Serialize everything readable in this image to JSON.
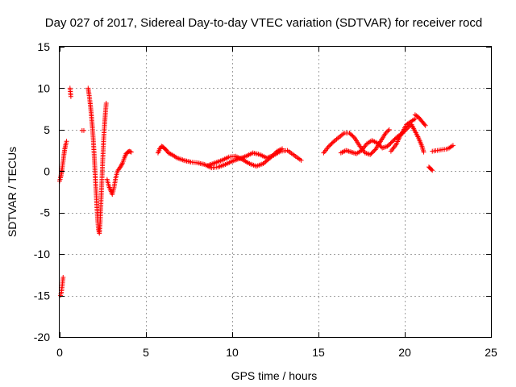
{
  "chart_data": {
    "type": "scatter",
    "title": "Day 027 of 2017, Sidereal Day-to-day VTEC variation (SDTVAR) for receiver rocd",
    "xlabel": "GPS time / hours",
    "ylabel": "SDTVAR / TECUs",
    "xlim": [
      0,
      25
    ],
    "ylim": [
      -20,
      15
    ],
    "grid": true,
    "marker": "+",
    "color": "#ff0000",
    "xticks": [
      0,
      5,
      10,
      15,
      20,
      25
    ],
    "yticks": [
      -20,
      -15,
      -10,
      -5,
      0,
      5,
      10,
      15
    ],
    "xtick_labels": [
      "0",
      "5",
      "10",
      "15",
      "20",
      "25"
    ],
    "ytick_labels": [
      "-20",
      "-15",
      "-10",
      "-5",
      "0",
      "5",
      "10",
      "15"
    ],
    "series": [
      {
        "name": "SDTVAR",
        "segments": [
          [
            [
              0.0,
              -1.2
            ],
            [
              0.05,
              -0.8
            ],
            [
              0.1,
              -0.3
            ],
            [
              0.15,
              0.4
            ],
            [
              0.2,
              1.2
            ],
            [
              0.25,
              2.0
            ],
            [
              0.3,
              2.7
            ],
            [
              0.35,
              3.2
            ],
            [
              0.4,
              3.6
            ]
          ],
          [
            [
              0.05,
              -15.0
            ],
            [
              0.1,
              -14.6
            ],
            [
              0.15,
              -13.8
            ],
            [
              0.2,
              -12.8
            ]
          ],
          [
            [
              0.6,
              10.0
            ],
            [
              0.65,
              9.0
            ]
          ],
          [
            [
              1.3,
              4.9
            ],
            [
              1.4,
              4.9
            ]
          ],
          [
            [
              1.65,
              10.0
            ],
            [
              1.7,
              9.3
            ],
            [
              1.75,
              8.5
            ],
            [
              1.8,
              7.6
            ],
            [
              1.85,
              6.5
            ],
            [
              1.9,
              5.2
            ],
            [
              1.95,
              3.8
            ],
            [
              2.0,
              2.0
            ],
            [
              2.05,
              0.0
            ],
            [
              2.1,
              -2.0
            ],
            [
              2.15,
              -4.0
            ],
            [
              2.2,
              -5.8
            ],
            [
              2.25,
              -7.0
            ],
            [
              2.3,
              -7.5
            ],
            [
              2.35,
              -6.0
            ],
            [
              2.4,
              -3.5
            ],
            [
              2.45,
              -1.0
            ],
            [
              2.5,
              1.5
            ],
            [
              2.55,
              3.8
            ],
            [
              2.6,
              5.5
            ],
            [
              2.65,
              7.0
            ],
            [
              2.7,
              8.2
            ]
          ],
          [
            [
              2.75,
              -1.0
            ],
            [
              2.85,
              -1.8
            ],
            [
              2.95,
              -2.3
            ],
            [
              3.05,
              -2.8
            ],
            [
              3.15,
              -2.0
            ],
            [
              3.25,
              -0.8
            ],
            [
              3.35,
              0.0
            ],
            [
              3.45,
              0.3
            ],
            [
              3.55,
              0.6
            ],
            [
              3.65,
              1.0
            ],
            [
              3.75,
              1.6
            ],
            [
              3.85,
              2.1
            ],
            [
              3.95,
              2.3
            ],
            [
              4.05,
              2.4
            ],
            [
              4.15,
              2.3
            ]
          ],
          [
            [
              5.7,
              2.2
            ],
            [
              5.8,
              2.7
            ],
            [
              5.9,
              3.0
            ],
            [
              6.0,
              2.9
            ],
            [
              6.1,
              2.7
            ],
            [
              6.2,
              2.5
            ],
            [
              6.3,
              2.2
            ],
            [
              6.5,
              2.0
            ],
            [
              6.8,
              1.6
            ],
            [
              7.2,
              1.3
            ],
            [
              7.6,
              1.1
            ],
            [
              8.0,
              1.0
            ],
            [
              8.4,
              0.8
            ],
            [
              8.8,
              0.4
            ],
            [
              9.2,
              0.5
            ],
            [
              9.6,
              0.8
            ],
            [
              10.0,
              1.2
            ],
            [
              10.4,
              1.5
            ],
            [
              10.8,
              1.8
            ],
            [
              11.2,
              2.2
            ],
            [
              11.6,
              2.0
            ],
            [
              12.0,
              1.6
            ],
            [
              12.4,
              1.9
            ],
            [
              12.8,
              2.4
            ],
            [
              13.2,
              2.5
            ],
            [
              13.6,
              1.9
            ],
            [
              14.0,
              1.3
            ]
          ],
          [
            [
              8.6,
              0.7
            ],
            [
              9.0,
              1.0
            ],
            [
              9.4,
              1.3
            ],
            [
              9.8,
              1.7
            ],
            [
              10.2,
              1.8
            ],
            [
              10.6,
              1.4
            ],
            [
              11.0,
              0.9
            ],
            [
              11.4,
              0.6
            ],
            [
              11.8,
              0.9
            ],
            [
              12.2,
              1.6
            ],
            [
              12.6,
              2.4
            ],
            [
              12.9,
              2.7
            ]
          ],
          [
            [
              15.3,
              2.2
            ],
            [
              15.6,
              3.0
            ],
            [
              15.9,
              3.6
            ],
            [
              16.2,
              4.1
            ],
            [
              16.5,
              4.6
            ],
            [
              16.8,
              4.6
            ],
            [
              17.1,
              4.0
            ],
            [
              17.4,
              3.0
            ],
            [
              17.7,
              2.2
            ],
            [
              18.0,
              2.0
            ],
            [
              18.3,
              2.6
            ],
            [
              18.6,
              3.6
            ],
            [
              18.9,
              4.6
            ],
            [
              19.1,
              5.0
            ]
          ],
          [
            [
              16.3,
              2.2
            ],
            [
              16.6,
              2.5
            ],
            [
              16.9,
              2.3
            ],
            [
              17.2,
              2.1
            ],
            [
              17.5,
              2.5
            ],
            [
              17.8,
              3.3
            ],
            [
              18.1,
              3.7
            ],
            [
              18.4,
              3.4
            ],
            [
              18.7,
              2.8
            ],
            [
              19.0,
              3.0
            ],
            [
              19.3,
              3.6
            ],
            [
              19.6,
              4.2
            ],
            [
              19.9,
              4.6
            ],
            [
              20.2,
              5.3
            ],
            [
              20.4,
              5.6
            ],
            [
              20.6,
              4.8
            ],
            [
              20.8,
              4.0
            ],
            [
              21.0,
              3.0
            ],
            [
              21.1,
              2.3
            ]
          ],
          [
            [
              19.2,
              2.4
            ],
            [
              19.5,
              3.2
            ],
            [
              19.8,
              4.5
            ],
            [
              20.1,
              5.6
            ],
            [
              20.3,
              5.9
            ],
            [
              20.6,
              6.3
            ]
          ],
          [
            [
              20.6,
              6.8
            ],
            [
              20.8,
              6.5
            ],
            [
              21.0,
              6.0
            ],
            [
              21.2,
              5.5
            ]
          ],
          [
            [
              21.4,
              0.5
            ],
            [
              21.5,
              0.3
            ],
            [
              21.6,
              0.1
            ]
          ],
          [
            [
              21.6,
              2.4
            ],
            [
              21.9,
              2.5
            ],
            [
              22.2,
              2.6
            ],
            [
              22.5,
              2.7
            ],
            [
              22.8,
              3.1
            ]
          ]
        ]
      }
    ]
  }
}
